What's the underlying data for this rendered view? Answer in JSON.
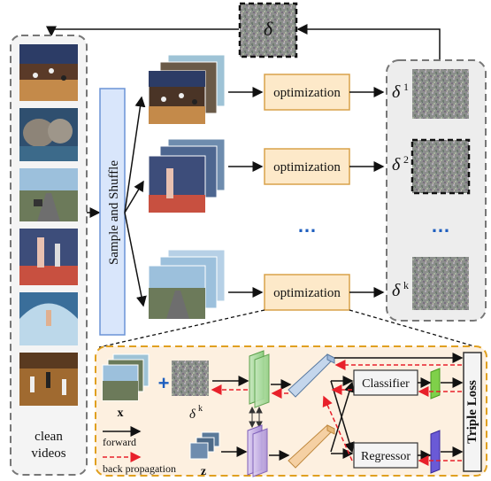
{
  "delta_top": "δ",
  "left_panel": {
    "caption_line1": "clean",
    "caption_line2": "videos",
    "thumbnails": [
      "basketball-court",
      "elephants-water",
      "road-driving",
      "tennis-court",
      "surfer-wave",
      "basketball-indoor"
    ]
  },
  "sample_block": "Sample and Shuffle",
  "opt_boxes": [
    "optimization",
    "optimization",
    "optimization"
  ],
  "ellipsis": "…",
  "deltas": [
    {
      "sym": "δ",
      "sup": "1"
    },
    {
      "sym": "δ",
      "sup": "2"
    },
    {
      "sym": "δ",
      "sup": "k"
    }
  ],
  "detail": {
    "x_label": "x",
    "z_label": "z",
    "plus": "+",
    "delta_k_sym": "δ",
    "delta_k_sup": "k",
    "classifier": "Classifier",
    "regressor": "Regressor",
    "loss": "Triple Loss",
    "legend_forward": "forward",
    "legend_back": "back propagation"
  },
  "colors": {
    "opt_fill": "#fde9c9",
    "opt_border": "#d9a24a",
    "sample_fill": "#d9e6fb",
    "sample_border": "#6b93d6",
    "detail_fill": "#fdf0e0",
    "detail_border": "#e0a020",
    "ellipsis": "#1f5fbf",
    "backprop": "#e8202a"
  }
}
